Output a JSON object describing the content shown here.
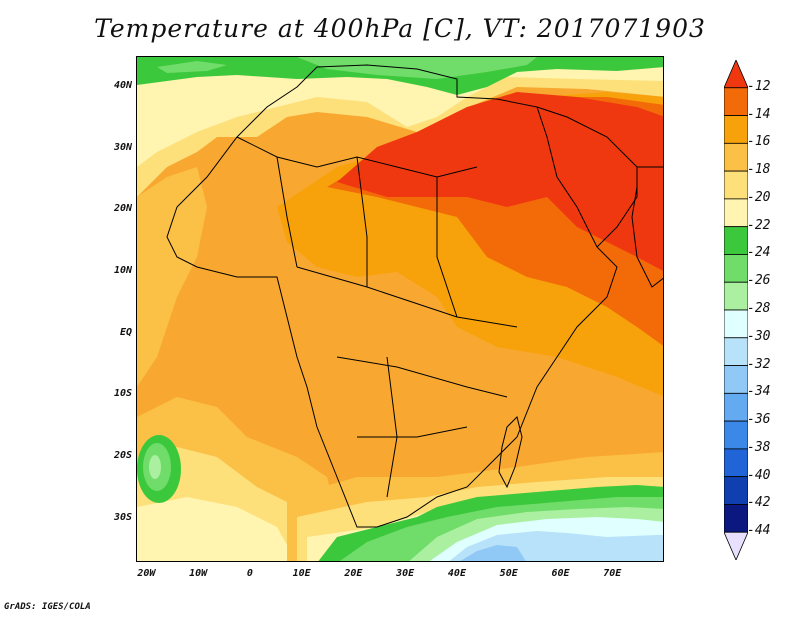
{
  "title": "Temperature at 400hPa [C], VT: 2017071903",
  "footer": "GrADS: IGES/COLA",
  "map": {
    "lon_range": [
      -22,
      80
    ],
    "lat_range": [
      -37,
      45
    ],
    "lat_ticks": [
      {
        "value": 40,
        "label": "40N"
      },
      {
        "value": 30,
        "label": "30N"
      },
      {
        "value": 20,
        "label": "20N"
      },
      {
        "value": 10,
        "label": "10N"
      },
      {
        "value": 0,
        "label": "EQ"
      },
      {
        "value": -10,
        "label": "10S"
      },
      {
        "value": -20,
        "label": "20S"
      },
      {
        "value": -30,
        "label": "30S"
      }
    ],
    "lon_ticks": [
      {
        "value": -20,
        "label": "20W"
      },
      {
        "value": -10,
        "label": "10W"
      },
      {
        "value": 0,
        "label": "0"
      },
      {
        "value": 10,
        "label": "10E"
      },
      {
        "value": 20,
        "label": "20E"
      },
      {
        "value": 30,
        "label": "30E"
      },
      {
        "value": 40,
        "label": "40E"
      },
      {
        "value": 50,
        "label": "50E"
      },
      {
        "value": 60,
        "label": "60E"
      },
      {
        "value": 70,
        "label": "70E"
      }
    ]
  },
  "colorbar": {
    "levels": [
      "-12",
      "-14",
      "-16",
      "-18",
      "-20",
      "-22",
      "-24",
      "-26",
      "-28",
      "-30",
      "-32",
      "-34",
      "-36",
      "-38",
      "-40",
      "-42",
      "-44"
    ],
    "colors": [
      "#f03810",
      "#f36a08",
      "#f7a20a",
      "#fbc046",
      "#fde07a",
      "#fff4b0",
      "#3cc83c",
      "#70dc6a",
      "#aaf0a0",
      "#e0ffff",
      "#b8e2fa",
      "#90c8f6",
      "#64aaf0",
      "#3c88e8",
      "#2064d8",
      "#1040b0",
      "#0a1880",
      "#e8e0ff"
    ]
  },
  "fields": {
    "base_color": "#f8a830",
    "colors": {
      "t12": "#f03810",
      "t14": "#f36a08",
      "t16": "#f7a20a",
      "t18": "#fbc046",
      "t20": "#fde07a",
      "t22": "#fff4b0",
      "t24": "#3cc83c",
      "t26": "#70dc6a",
      "t28": "#aaf0a0",
      "t30": "#e0ffff",
      "t32": "#b8e2fa",
      "t34": "#90c8f6"
    }
  }
}
